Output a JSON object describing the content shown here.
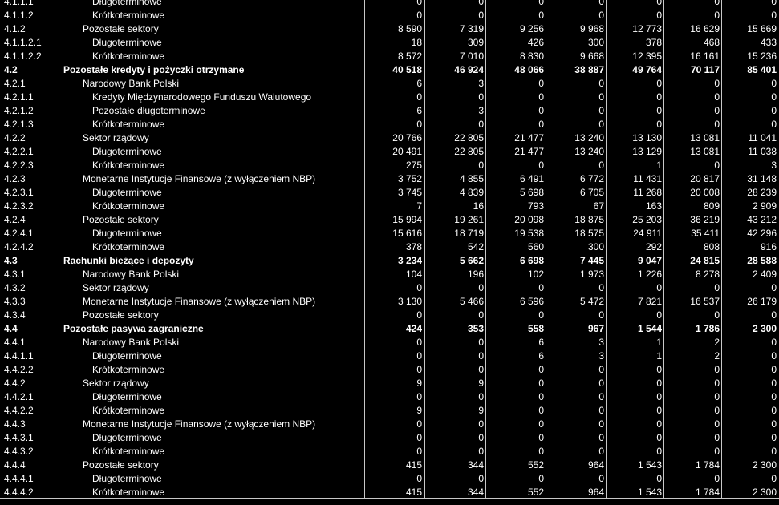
{
  "rows": [
    {
      "code": "4.1.1.1",
      "label": "Długoterminowe",
      "level": 2,
      "bold": false,
      "values": [
        "0",
        "0",
        "0",
        "0",
        "0",
        "0",
        "0"
      ]
    },
    {
      "code": "4.1.1.2",
      "label": "Krótkoterminowe",
      "level": 2,
      "bold": false,
      "values": [
        "0",
        "0",
        "0",
        "0",
        "0",
        "0",
        "0"
      ]
    },
    {
      "code": "4.1.2",
      "label": "Pozostałe sektory",
      "level": 1,
      "bold": false,
      "values": [
        "8 590",
        "7 319",
        "9 256",
        "9 968",
        "12 773",
        "16 629",
        "15 669"
      ]
    },
    {
      "code": "4.1.1.2.1",
      "label": "Długoterminowe",
      "level": 2,
      "bold": false,
      "values": [
        "18",
        "309",
        "426",
        "300",
        "378",
        "468",
        "433"
      ]
    },
    {
      "code": "4.1.1.2.2",
      "label": "Krótkoterminowe",
      "level": 2,
      "bold": false,
      "values": [
        "8 572",
        "7 010",
        "8 830",
        "9 668",
        "12 395",
        "16 161",
        "15 236"
      ]
    },
    {
      "code": "4.2",
      "label": "Pozostałe kredyty i pożyczki otrzymane",
      "level": 0,
      "bold": true,
      "values": [
        "40 518",
        "46 924",
        "48 066",
        "38 887",
        "49 764",
        "70 117",
        "85 401"
      ]
    },
    {
      "code": "4.2.1",
      "label": "Narodowy Bank Polski",
      "level": 1,
      "bold": false,
      "values": [
        "6",
        "3",
        "0",
        "0",
        "0",
        "0",
        "0"
      ]
    },
    {
      "code": "4.2.1.1",
      "label": "Kredyty Międzynarodowego Funduszu Walutowego",
      "level": 2,
      "bold": false,
      "values": [
        "0",
        "0",
        "0",
        "0",
        "0",
        "0",
        "0"
      ]
    },
    {
      "code": "4.2.1.2",
      "label": "Pozostałe długoterminowe",
      "level": 2,
      "bold": false,
      "values": [
        "6",
        "3",
        "0",
        "0",
        "0",
        "0",
        "0"
      ]
    },
    {
      "code": "4.2.1.3",
      "label": "Krótkoterminowe",
      "level": 2,
      "bold": false,
      "values": [
        "0",
        "0",
        "0",
        "0",
        "0",
        "0",
        "0"
      ]
    },
    {
      "code": "4.2.2",
      "label": "Sektor rządowy",
      "level": 1,
      "bold": false,
      "values": [
        "20 766",
        "22 805",
        "21 477",
        "13 240",
        "13 130",
        "13 081",
        "11 041"
      ]
    },
    {
      "code": "4.2.2.1",
      "label": "Długoterminowe",
      "level": 2,
      "bold": false,
      "values": [
        "20 491",
        "22 805",
        "21 477",
        "13 240",
        "13 129",
        "13 081",
        "11 038"
      ]
    },
    {
      "code": "4.2.2.3",
      "label": "Krótkoterminowe",
      "level": 2,
      "bold": false,
      "values": [
        "275",
        "0",
        "0",
        "0",
        "1",
        "0",
        "3"
      ]
    },
    {
      "code": "4.2.3",
      "label": "Monetarne Instytucje Finansowe (z wyłączeniem NBP)",
      "level": 1,
      "bold": false,
      "values": [
        "3 752",
        "4 855",
        "6 491",
        "6 772",
        "11 431",
        "20 817",
        "31 148"
      ]
    },
    {
      "code": "4.2.3.1",
      "label": "Długoterminowe",
      "level": 2,
      "bold": false,
      "values": [
        "3 745",
        "4 839",
        "5 698",
        "6 705",
        "11 268",
        "20 008",
        "28 239"
      ]
    },
    {
      "code": "4.2.3.2",
      "label": "Krótkoterminowe",
      "level": 2,
      "bold": false,
      "values": [
        "7",
        "16",
        "793",
        "67",
        "163",
        "809",
        "2 909"
      ]
    },
    {
      "code": "4.2.4",
      "label": "Pozostałe sektory",
      "level": 1,
      "bold": false,
      "values": [
        "15 994",
        "19 261",
        "20 098",
        "18 875",
        "25 203",
        "36 219",
        "43 212"
      ]
    },
    {
      "code": "4.2.4.1",
      "label": "Długoterminowe",
      "level": 2,
      "bold": false,
      "values": [
        "15 616",
        "18 719",
        "19 538",
        "18 575",
        "24 911",
        "35 411",
        "42 296"
      ]
    },
    {
      "code": "4.2.4.2",
      "label": "Krótkoterminowe",
      "level": 2,
      "bold": false,
      "values": [
        "378",
        "542",
        "560",
        "300",
        "292",
        "808",
        "916"
      ]
    },
    {
      "code": "4.3",
      "label": "Rachunki bieżące i depozyty",
      "level": 0,
      "bold": true,
      "values": [
        "3 234",
        "5 662",
        "6 698",
        "7 445",
        "9 047",
        "24 815",
        "28 588"
      ]
    },
    {
      "code": "4.3.1",
      "label": "Narodowy Bank Polski",
      "level": 1,
      "bold": false,
      "values": [
        "104",
        "196",
        "102",
        "1 973",
        "1 226",
        "8 278",
        "2 409"
      ]
    },
    {
      "code": "4.3.2",
      "label": "Sektor rządowy",
      "level": 1,
      "bold": false,
      "values": [
        "0",
        "0",
        "0",
        "0",
        "0",
        "0",
        "0"
      ]
    },
    {
      "code": "4.3.3",
      "label": "Monetarne Instytucje Finansowe (z wyłączeniem NBP)",
      "level": 1,
      "bold": false,
      "values": [
        "3 130",
        "5 466",
        "6 596",
        "5 472",
        "7 821",
        "16 537",
        "26 179"
      ]
    },
    {
      "code": "4.3.4",
      "label": "Pozostałe sektory",
      "level": 1,
      "bold": false,
      "values": [
        "0",
        "0",
        "0",
        "0",
        "0",
        "0",
        "0"
      ]
    },
    {
      "code": "4.4",
      "label": "Pozostałe pasywa zagraniczne",
      "level": 0,
      "bold": true,
      "values": [
        "424",
        "353",
        "558",
        "967",
        "1 544",
        "1 786",
        "2 300"
      ]
    },
    {
      "code": "4.4.1",
      "label": "Narodowy Bank Polski",
      "level": 1,
      "bold": false,
      "values": [
        "0",
        "0",
        "6",
        "3",
        "1",
        "2",
        "0"
      ]
    },
    {
      "code": "4.4.1.1",
      "label": "Długoterminowe",
      "level": 2,
      "bold": false,
      "values": [
        "0",
        "0",
        "6",
        "3",
        "1",
        "2",
        "0"
      ]
    },
    {
      "code": "4.4.2.2",
      "label": "Krótkoterminowe",
      "level": 2,
      "bold": false,
      "values": [
        "0",
        "0",
        "0",
        "0",
        "0",
        "0",
        "0"
      ]
    },
    {
      "code": "4.4.2",
      "label": "Sektor rządowy",
      "level": 1,
      "bold": false,
      "values": [
        "9",
        "9",
        "0",
        "0",
        "0",
        "0",
        "0"
      ]
    },
    {
      "code": "4.4.2.1",
      "label": "Długoterminowe",
      "level": 2,
      "bold": false,
      "values": [
        "0",
        "0",
        "0",
        "0",
        "0",
        "0",
        "0"
      ]
    },
    {
      "code": "4.4.2.2",
      "label": "Krótkoterminowe",
      "level": 2,
      "bold": false,
      "values": [
        "9",
        "9",
        "0",
        "0",
        "0",
        "0",
        "0"
      ]
    },
    {
      "code": "4.4.3",
      "label": "Monetarne Instytucje Finansowe (z wyłączeniem NBP)",
      "level": 1,
      "bold": false,
      "values": [
        "0",
        "0",
        "0",
        "0",
        "0",
        "0",
        "0"
      ]
    },
    {
      "code": "4.4.3.1",
      "label": "Długoterminowe",
      "level": 2,
      "bold": false,
      "values": [
        "0",
        "0",
        "0",
        "0",
        "0",
        "0",
        "0"
      ]
    },
    {
      "code": "4.4.3.2",
      "label": "Krótkoterminowe",
      "level": 2,
      "bold": false,
      "values": [
        "0",
        "0",
        "0",
        "0",
        "0",
        "0",
        "0"
      ]
    },
    {
      "code": "4.4.4",
      "label": "Pozostałe sektory",
      "level": 1,
      "bold": false,
      "values": [
        "415",
        "344",
        "552",
        "964",
        "1 543",
        "1 784",
        "2 300"
      ]
    },
    {
      "code": "4.4.4.1",
      "label": "Długoterminowe",
      "level": 2,
      "bold": false,
      "values": [
        "0",
        "0",
        "0",
        "0",
        "0",
        "0",
        "0"
      ]
    },
    {
      "code": "4.4.4.2",
      "label": "Krótkoterminowe",
      "level": 2,
      "bold": false,
      "values": [
        "415",
        "344",
        "552",
        "964",
        "1 543",
        "1 784",
        "2 300"
      ]
    }
  ]
}
